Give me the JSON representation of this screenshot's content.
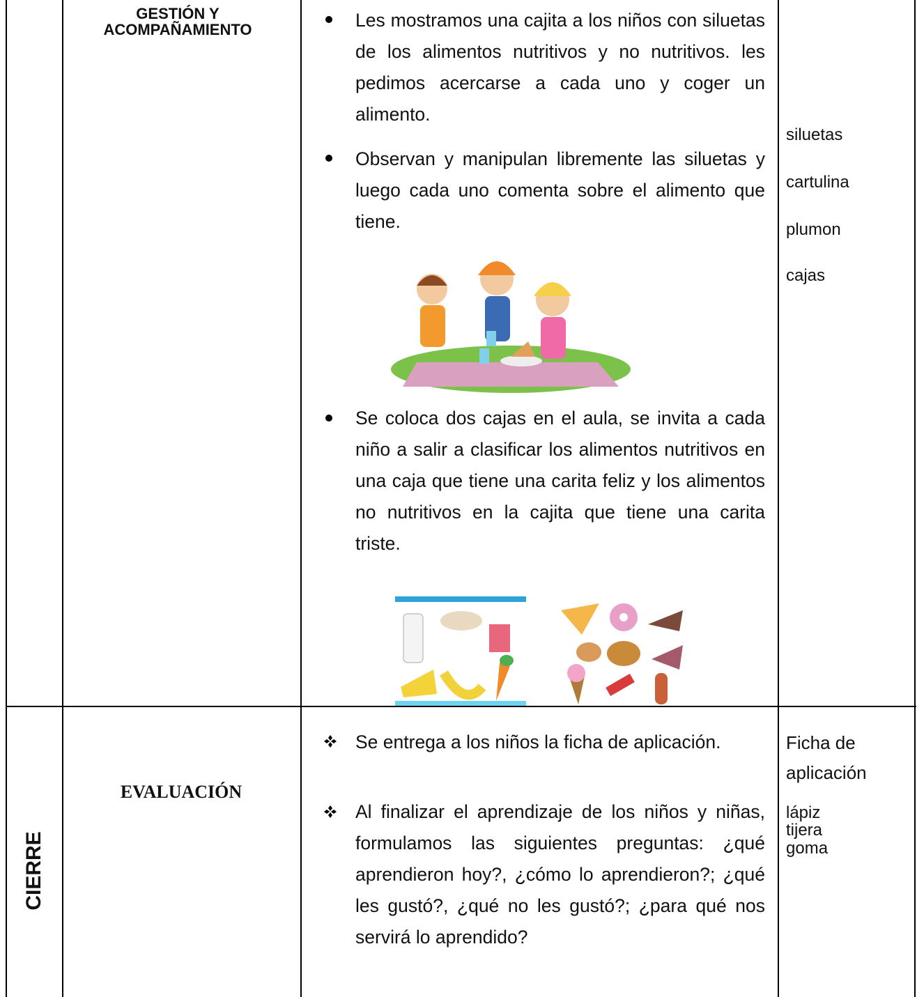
{
  "table": {
    "rows": [
      {
        "heading": "GESTIÓN Y ACOMPAÑAMIENTO",
        "activities": [
          "Les mostramos una cajita a los niños con siluetas de  los alimentos nutritivos y no nutritivos. les pedimos acercarse a cada uno y coger un alimento.",
          "Observan y manipulan libremente las siluetas y luego cada uno comenta sobre el alimento que tiene.",
          "Se coloca dos cajas en el aula, se invita a cada niño a salir a  clasificar los alimentos nutritivos en una caja que tiene una carita feliz y los alimentos no nutritivos en la cajita que tiene una carita triste."
        ],
        "materials": [
          "siluetas",
          "cartulina",
          "plumon",
          "cajas"
        ]
      },
      {
        "stage": "CIERRE",
        "heading": "EVALUACIÓN",
        "activities": [
          "Se entrega a los niños  la ficha de aplicación.",
          "Al finalizar el aprendizaje de los niños y niñas, formulamos las siguientes preguntas: ¿qué aprendieron hoy?, ¿cómo lo aprendieron?; ¿qué les gustó?, ¿qué no les gustó?; ¿para qué nos servirá lo aprendido?"
        ],
        "materials": [
          "Ficha de aplicación",
          "lápiz",
          "tijera",
          "goma"
        ]
      }
    ]
  }
}
